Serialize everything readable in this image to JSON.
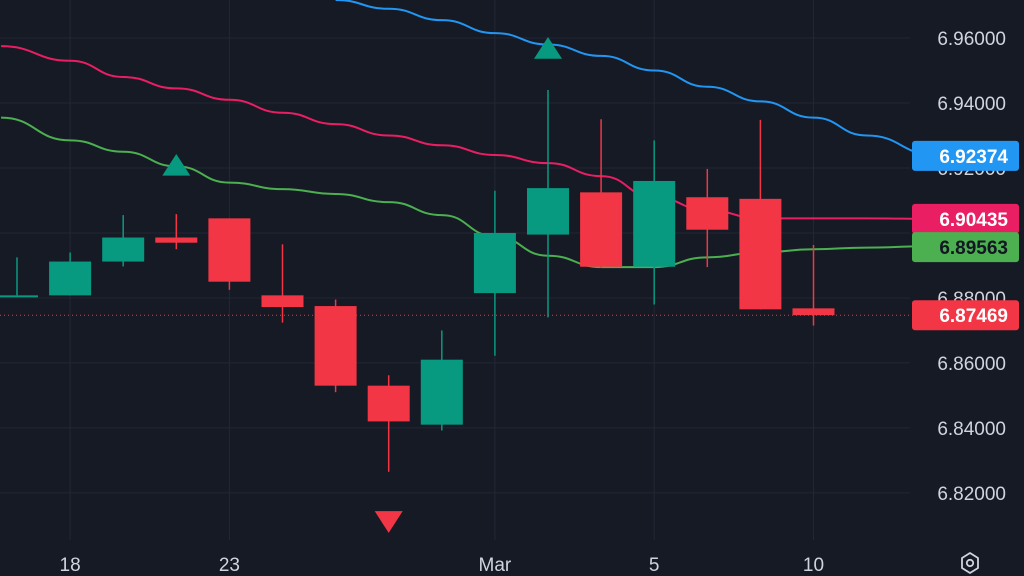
{
  "chart_data": {
    "type": "candlestick",
    "y_ticks": [
      "6.96000",
      "6.94000",
      "6.92000",
      "6.90000",
      "6.88000",
      "6.86000",
      "6.84000",
      "6.82000"
    ],
    "y_tick_values": [
      6.96,
      6.94,
      6.92,
      6.9,
      6.88,
      6.86,
      6.84,
      6.82
    ],
    "ylim": [
      6.8055,
      6.9717
    ],
    "x_ticks": [
      {
        "label": "18",
        "index": 1
      },
      {
        "label": "23",
        "index": 4
      },
      {
        "label": "Mar",
        "index": 9
      },
      {
        "label": "5",
        "index": 12
      },
      {
        "label": "10",
        "index": 15
      }
    ],
    "x_range": [
      -0.3,
      17.3
    ],
    "grid": true,
    "colors": {
      "up": "#089981",
      "down": "#f23645",
      "ma_fast": "#4caf50",
      "ma_mid": "#e91e63",
      "ma_slow": "#2196f3",
      "last_price": "#f23645"
    },
    "candles": [
      {
        "o": 6.8808,
        "h": 6.8925,
        "l": 6.8808,
        "c": 6.8808
      },
      {
        "o": 6.8808,
        "h": 6.894,
        "l": 6.8808,
        "c": 6.8912
      },
      {
        "o": 6.8912,
        "h": 6.9055,
        "l": 6.8897,
        "c": 6.8986
      },
      {
        "o": 6.8986,
        "h": 6.9058,
        "l": 6.895,
        "c": 6.897
      },
      {
        "o": 6.9045,
        "h": 6.9045,
        "l": 6.8825,
        "c": 6.885
      },
      {
        "o": 6.8808,
        "h": 6.8965,
        "l": 6.8724,
        "c": 6.8772
      },
      {
        "o": 6.8775,
        "h": 6.8795,
        "l": 6.851,
        "c": 6.853
      },
      {
        "o": 6.853,
        "h": 6.8562,
        "l": 6.8265,
        "c": 6.842
      },
      {
        "o": 6.841,
        "h": 6.87,
        "l": 6.8392,
        "c": 6.861
      },
      {
        "o": 6.8815,
        "h": 6.913,
        "l": 6.8622,
        "c": 6.9
      },
      {
        "o": 6.8995,
        "h": 6.944,
        "l": 6.874,
        "c": 6.9138
      },
      {
        "o": 6.9125,
        "h": 6.935,
        "l": 6.8892,
        "c": 6.8896
      },
      {
        "o": 6.8896,
        "h": 6.9285,
        "l": 6.878,
        "c": 6.916
      },
      {
        "o": 6.911,
        "h": 6.9197,
        "l": 6.8895,
        "c": 6.901
      },
      {
        "o": 6.9105,
        "h": 6.9348,
        "l": 6.8765,
        "c": 6.8765
      },
      {
        "o": 6.8768,
        "h": 6.8963,
        "l": 6.8715,
        "c": 6.8747
      }
    ],
    "series": [
      {
        "type": "line",
        "color": "#4caf50",
        "x": [
          -0.3,
          1,
          2,
          3,
          4,
          5,
          6,
          7,
          8,
          9,
          10,
          11,
          12,
          13,
          14,
          15,
          16,
          17.3
        ],
        "y": [
          6.9355,
          6.9285,
          6.925,
          6.9205,
          6.9155,
          6.9135,
          6.912,
          6.9095,
          6.9055,
          6.899,
          6.893,
          6.8895,
          6.8895,
          6.8925,
          6.894,
          6.895,
          6.8955,
          6.896
        ]
      },
      {
        "type": "line",
        "color": "#e91e63",
        "x": [
          -0.3,
          1,
          2,
          3,
          4,
          5,
          6,
          7,
          8,
          9,
          10,
          11,
          12,
          13,
          14,
          15,
          16,
          17.3
        ],
        "y": [
          6.9575,
          6.953,
          6.948,
          6.9445,
          6.941,
          6.937,
          6.9335,
          6.93,
          6.927,
          6.924,
          6.9215,
          6.9175,
          6.911,
          6.907,
          6.9045,
          6.9045,
          6.9045,
          6.9043
        ]
      },
      {
        "type": "line",
        "color": "#2196f3",
        "x": [
          6,
          7,
          8,
          9,
          10,
          11,
          12,
          13,
          14,
          15,
          16,
          17.3
        ],
        "y": [
          6.9717,
          6.969,
          6.9655,
          6.9615,
          6.958,
          6.9545,
          6.95,
          6.945,
          6.9405,
          6.9355,
          6.93,
          6.924
        ]
      }
    ],
    "markers": [
      {
        "type": "triangle-up",
        "index": 3,
        "y": 6.92,
        "color": "#089981"
      },
      {
        "type": "triangle-up",
        "index": 10,
        "y": 6.956,
        "color": "#089981"
      },
      {
        "type": "triangle-down",
        "index": 7,
        "y": 6.812,
        "color": "#f23645"
      }
    ],
    "last_price": 6.87469,
    "price_labels": [
      {
        "text": "6.92374",
        "value": 6.92374,
        "bg": "#2196f3",
        "text_color": "#ffffff"
      },
      {
        "text": "6.90435",
        "value": 6.90435,
        "bg": "#e91e63",
        "text_color": "#ffffff"
      },
      {
        "text": "6.89563",
        "value": 6.89563,
        "bg": "#4caf50",
        "text_color": "#131722"
      },
      {
        "text": "6.87469",
        "value": 6.87469,
        "bg": "#f23645",
        "text_color": "#ffffff"
      }
    ],
    "settings_icon": "gear-icon"
  }
}
